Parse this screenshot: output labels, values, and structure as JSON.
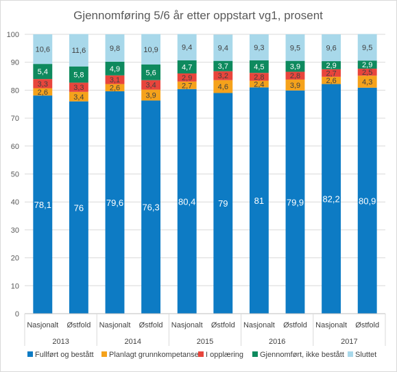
{
  "chart_data": {
    "type": "bar",
    "stacked": true,
    "title": "Gjennomføring 5/6 år etter oppstart  vg1, prosent",
    "ylim": [
      0,
      100
    ],
    "yticks": [
      0,
      10,
      20,
      30,
      40,
      50,
      60,
      70,
      80,
      90,
      100
    ],
    "grid": true,
    "legend_position": "bottom",
    "groups": [
      "2013",
      "2014",
      "2015",
      "2016",
      "2017"
    ],
    "categories": [
      "Nasjonalt",
      "Østfold",
      "Nasjonalt",
      "Østfold",
      "Nasjonalt",
      "Østfold",
      "Nasjonalt",
      "Østfold",
      "Nasjonalt",
      "Østfold"
    ],
    "series": [
      {
        "name": "Fullført og bestått",
        "color": "#0d7bc4",
        "values": [
          78.1,
          76,
          79.6,
          76.3,
          80.4,
          79,
          81,
          79.9,
          82.2,
          80.9
        ],
        "labels": [
          "78,1",
          "76",
          "79,6",
          "76,3",
          "80,4",
          "79",
          "81",
          "79,9",
          "82,2",
          "80,9"
        ]
      },
      {
        "name": "Planlagt grunnkompetanse",
        "color": "#f5a21b",
        "values": [
          2.6,
          3.4,
          2.6,
          3.9,
          2.7,
          4.6,
          2.4,
          3.9,
          2.6,
          4.3
        ],
        "labels": [
          "2,6",
          "3,4",
          "2,6",
          "3,9",
          "2,7",
          "4,6",
          "2,4",
          "3,9",
          "2,6",
          "4,3"
        ]
      },
      {
        "name": "I opplæring",
        "color": "#e8453c",
        "values": [
          3.3,
          3.3,
          3.1,
          3.4,
          2.9,
          3.2,
          2.8,
          2.8,
          2.7,
          2.5
        ],
        "labels": [
          "3,3",
          "3,3",
          "3,1",
          "3,4",
          "2,9",
          "3,2",
          "2,8",
          "2,8",
          "2,7",
          "2,5"
        ]
      },
      {
        "name": "Gjennomført, ikke bestått",
        "color": "#0e8a5e",
        "values": [
          5.4,
          5.8,
          4.9,
          5.6,
          4.7,
          3.7,
          4.5,
          3.9,
          2.9,
          2.9
        ],
        "labels": [
          "5,4",
          "5,8",
          "4,9",
          "5,6",
          "4,7",
          "3,7",
          "4,5",
          "3,9",
          "2,9",
          "2,9"
        ]
      },
      {
        "name": "Sluttet",
        "color": "#a8d8ea",
        "values": [
          10.6,
          11.6,
          9.8,
          10.9,
          9.4,
          9.4,
          9.3,
          9.5,
          9.6,
          9.5
        ],
        "labels": [
          "10,6",
          "11,6",
          "9,8",
          "10,9",
          "9,4",
          "9,4",
          "9,3",
          "9,5",
          "9,6",
          "9,5"
        ]
      }
    ],
    "label_colors": [
      "#ffffff",
      "#404040",
      "#404040",
      "#ffffff",
      "#404040"
    ]
  }
}
